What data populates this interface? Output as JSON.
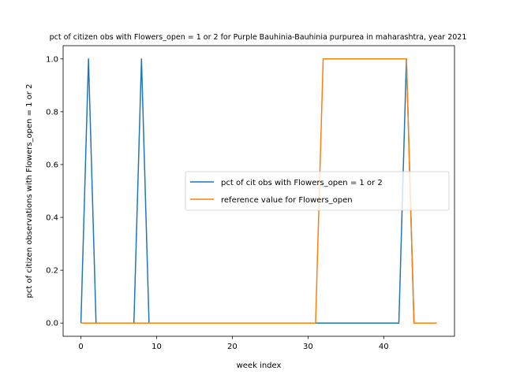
{
  "chart_data": {
    "type": "line",
    "title": "pct of citizen obs with Flowers_open = 1 or 2 for Purple Bauhinia-Bauhinia purpurea in maharashtra, year 2021",
    "xlabel": "week index",
    "ylabel": "pct of citizen observations with Flowers_open = 1 or 2",
    "xlim": [
      -2.35,
      49.35
    ],
    "ylim": [
      -0.05,
      1.05
    ],
    "xticks": [
      0,
      10,
      20,
      30,
      40
    ],
    "yticks": [
      0.0,
      0.2,
      0.4,
      0.6,
      0.8,
      1.0
    ],
    "xtick_labels": [
      "0",
      "10",
      "20",
      "30",
      "40"
    ],
    "ytick_labels": [
      "0.0",
      "0.2",
      "0.4",
      "0.6",
      "0.8",
      "1.0"
    ],
    "grid": false,
    "legend_position": "center-right",
    "series": [
      {
        "name": "pct of cit obs with Flowers_open = 1 or 2",
        "color": "#1f77b4",
        "x": [
          0,
          1,
          2,
          7,
          8,
          9,
          42,
          43,
          44,
          47
        ],
        "y": [
          0,
          1,
          0,
          0,
          1,
          0,
          0,
          1,
          0,
          0
        ]
      },
      {
        "name": "reference value for Flowers_open",
        "color": "#ff7f0e",
        "x": [
          0,
          31,
          32,
          43,
          44,
          47
        ],
        "y": [
          0,
          0,
          1,
          1,
          0,
          0
        ]
      }
    ]
  }
}
